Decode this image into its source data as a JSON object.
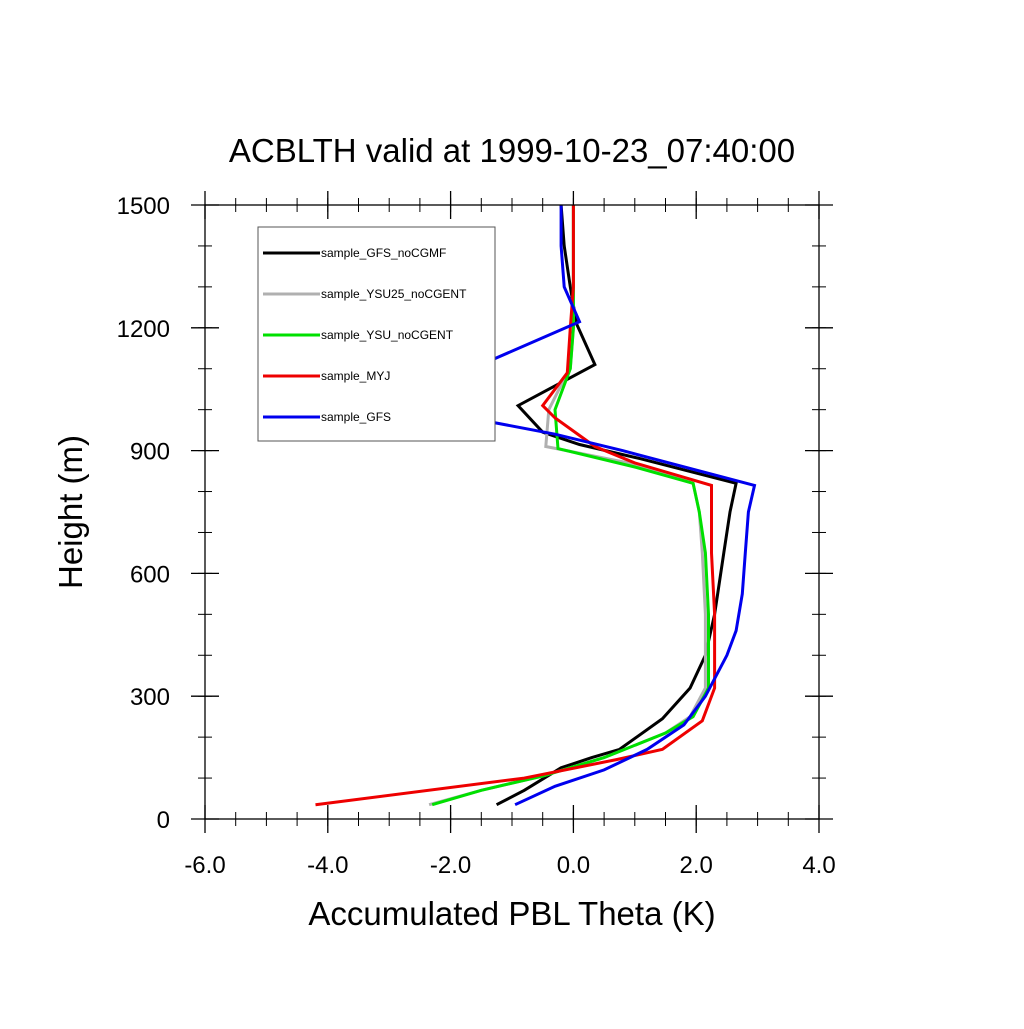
{
  "chart_data": {
    "type": "line",
    "title": "ACBLTH valid at 1999-10-23_07:40:00",
    "xlabel": "Accumulated PBL Theta (K)",
    "ylabel": "Height (m)",
    "xlim": [
      -6.0,
      4.0
    ],
    "ylim": [
      0,
      1500
    ],
    "x_ticks": [
      -6.0,
      -4.0,
      -2.0,
      0.0,
      2.0,
      4.0
    ],
    "x_tick_labels": [
      "-6.0",
      "-4.0",
      "-2.0",
      "0.0",
      "2.0",
      "4.0"
    ],
    "y_ticks": [
      0,
      300,
      600,
      900,
      1200,
      1500
    ],
    "y_tick_labels": [
      "0",
      "300",
      "600",
      "900",
      "1200",
      "1500"
    ],
    "x_minor_step": 0.5,
    "y_minor_step": 100,
    "grid": false,
    "legend_position": "top-left",
    "series": [
      {
        "name": "sample_GFS_noCGMF",
        "color": "#000000",
        "points": [
          [
            -1.25,
            35
          ],
          [
            -0.8,
            70
          ],
          [
            -0.2,
            125
          ],
          [
            0.3,
            150
          ],
          [
            0.75,
            170
          ],
          [
            1.45,
            245
          ],
          [
            1.9,
            320
          ],
          [
            2.15,
            400
          ],
          [
            2.3,
            500
          ],
          [
            2.45,
            650
          ],
          [
            2.55,
            750
          ],
          [
            2.65,
            820
          ],
          [
            1.1,
            880
          ],
          [
            0.1,
            915
          ],
          [
            -0.5,
            945
          ],
          [
            -0.9,
            1010
          ],
          [
            -0.4,
            1050
          ],
          [
            0.35,
            1110
          ],
          [
            0.05,
            1210
          ],
          [
            -0.05,
            1300
          ],
          [
            -0.15,
            1400
          ],
          [
            -0.2,
            1500
          ]
        ]
      },
      {
        "name": "sample_YSU25_noCGENT",
        "color": "#b0b0b0",
        "points": [
          [
            -2.35,
            35
          ],
          [
            -1.5,
            70
          ],
          [
            -0.5,
            105
          ],
          [
            0.5,
            150
          ],
          [
            1.5,
            210
          ],
          [
            1.9,
            250
          ],
          [
            2.15,
            320
          ],
          [
            2.15,
            500
          ],
          [
            2.1,
            650
          ],
          [
            2.05,
            750
          ],
          [
            1.95,
            820
          ],
          [
            0.9,
            870
          ],
          [
            -0.45,
            910
          ],
          [
            -0.4,
            1000
          ],
          [
            -0.2,
            1060
          ],
          [
            -0.05,
            1100
          ],
          [
            0.0,
            1200
          ],
          [
            0.0,
            1300
          ],
          [
            0.0,
            1500
          ]
        ]
      },
      {
        "name": "sample_YSU_noCGENT",
        "color": "#00e000",
        "points": [
          [
            -2.3,
            35
          ],
          [
            -1.5,
            70
          ],
          [
            -0.5,
            105
          ],
          [
            0.5,
            150
          ],
          [
            1.5,
            210
          ],
          [
            1.95,
            250
          ],
          [
            2.2,
            320
          ],
          [
            2.2,
            500
          ],
          [
            2.15,
            650
          ],
          [
            2.05,
            750
          ],
          [
            1.95,
            820
          ],
          [
            1.0,
            860
          ],
          [
            -0.25,
            905
          ],
          [
            -0.3,
            1000
          ],
          [
            -0.15,
            1060
          ],
          [
            -0.05,
            1100
          ],
          [
            0.0,
            1200
          ],
          [
            0.0,
            1300
          ],
          [
            0.0,
            1500
          ]
        ]
      },
      {
        "name": "sample_MYJ",
        "color": "#ee0000",
        "points": [
          [
            -4.2,
            35
          ],
          [
            -0.8,
            100
          ],
          [
            0.7,
            145
          ],
          [
            1.45,
            170
          ],
          [
            2.1,
            240
          ],
          [
            2.3,
            320
          ],
          [
            2.3,
            500
          ],
          [
            2.25,
            650
          ],
          [
            2.25,
            750
          ],
          [
            2.25,
            815
          ],
          [
            1.0,
            870
          ],
          [
            0.35,
            910
          ],
          [
            -0.3,
            980
          ],
          [
            -0.5,
            1010
          ],
          [
            -0.1,
            1090
          ],
          [
            -0.05,
            1200
          ],
          [
            0.0,
            1300
          ],
          [
            0.0,
            1500
          ]
        ]
      },
      {
        "name": "sample_GFS",
        "color": "#0000ee",
        "points": [
          [
            -0.95,
            35
          ],
          [
            -0.3,
            80
          ],
          [
            0.5,
            120
          ],
          [
            1.2,
            170
          ],
          [
            1.8,
            230
          ],
          [
            2.15,
            300
          ],
          [
            2.5,
            400
          ],
          [
            2.65,
            460
          ],
          [
            2.75,
            550
          ],
          [
            2.8,
            650
          ],
          [
            2.85,
            750
          ],
          [
            2.95,
            815
          ],
          [
            0.8,
            900
          ],
          [
            -0.3,
            940
          ],
          [
            -2.75,
            1010
          ],
          [
            -1.35,
            1120
          ],
          [
            0.1,
            1215
          ],
          [
            -0.15,
            1300
          ],
          [
            -0.2,
            1400
          ],
          [
            -0.2,
            1500
          ]
        ]
      }
    ]
  }
}
